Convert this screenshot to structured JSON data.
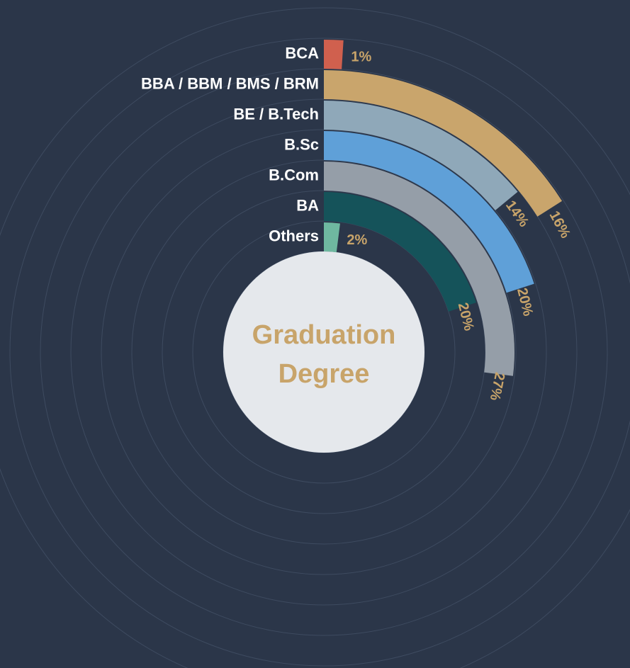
{
  "chart_data": {
    "type": "radial_bar",
    "center_text": [
      "Graduation",
      "Degree"
    ],
    "categories": [
      "BCA",
      "BBA / BBM / BMS / BRM",
      "BE / B.Tech",
      "B.Sc",
      "B.Com",
      "BA",
      "Others"
    ],
    "values": [
      1,
      16,
      14,
      20,
      27,
      20,
      2
    ],
    "value_labels": [
      "1%",
      "16%",
      "14%",
      "20%",
      "27%",
      "20%",
      "2%"
    ],
    "colors": [
      "#d0604e",
      "#c9a56c",
      "#8fa8b9",
      "#5fa0d8",
      "#959ea8",
      "#15535a",
      "#6fb8a0"
    ],
    "full_circle": 100
  }
}
